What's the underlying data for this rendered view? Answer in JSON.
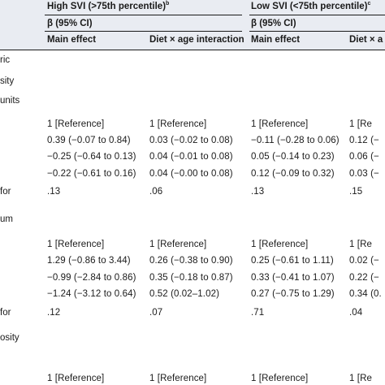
{
  "header": {
    "group_high": "High SVI (>75th percentile)",
    "group_high_note": "b",
    "group_low": "Low SVI (<75th percentile)",
    "group_low_note": "c",
    "beta_high": "β (95% CI)",
    "beta_low": "β (95% CI)",
    "col_main_effect_high": "Main effect",
    "col_interaction_high": "Diet × age interaction",
    "col_main_effect_low": "Main effect",
    "col_interaction_low": "Diet × a"
  },
  "row_labels": {
    "r1": "ric",
    "r2": "sity",
    "r3": "units",
    "r4": "",
    "r5": "for",
    "r6": "um",
    "r7": "",
    "r8": "for",
    "r9": "osity",
    "r10": ""
  },
  "block1": {
    "ref": [
      "1 [Reference]",
      "1 [Reference]",
      "1 [Reference]",
      "1 [Re"
    ],
    "row1": [
      "0.39 (−0.07 to 0.84)",
      "0.03 (−0.02 to 0.08)",
      "−0.11 (−0.28 to 0.06)",
      "0.12 (−"
    ],
    "row2": [
      "−0.25 (−0.64 to 0.13)",
      "0.04 (−0.01 to 0.08)",
      "0.05 (−0.14 to 0.23)",
      "0.06 (−"
    ],
    "row3": [
      "−0.22 (−0.61 to 0.16)",
      "0.04 (−0.00 to 0.08)",
      "0.12 (−0.09 to 0.32)",
      "0.03 (−"
    ],
    "p": [
      ".13",
      ".06",
      ".13",
      ".15"
    ]
  },
  "block2": {
    "ref": [
      "1 [Reference]",
      "1 [Reference]",
      "1 [Reference]",
      "1 [Re"
    ],
    "row1": [
      "1.29 (−0.86 to 3.44)",
      "0.26 (−0.38 to 0.90)",
      "0.25 (−0.61 to 1.11)",
      "0.02 (−"
    ],
    "row2": [
      "−0.99 (−2.84 to 0.86)",
      "0.35 (−0.18 to 0.87)",
      "0.33 (−0.41 to 1.07)",
      "0.22 (−"
    ],
    "row3": [
      "−1.24 (−3.12 to 0.64)",
      "0.52 (0.02–1.02)",
      "0.27 (−0.75 to 1.29)",
      "0.34 (0."
    ],
    "p": [
      ".12",
      ".07",
      ".71",
      ".04"
    ]
  },
  "block3": {
    "ref": [
      "1 [Reference]",
      "1 [Reference]",
      "1 [Reference]",
      "1 [Re"
    ]
  }
}
